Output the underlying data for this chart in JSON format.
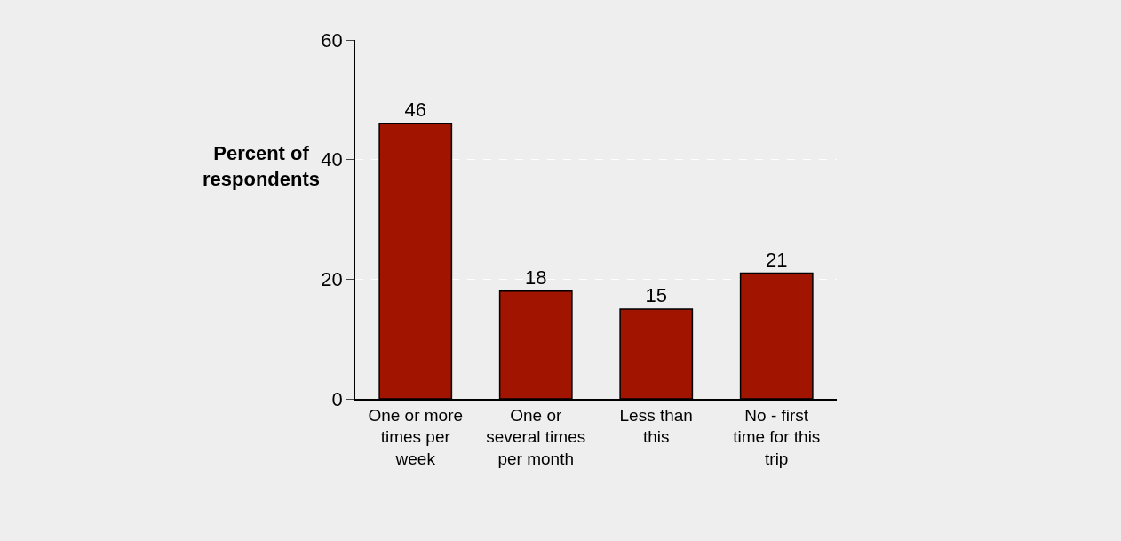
{
  "chart_data": {
    "type": "bar",
    "ylabel": "Percent of respondents",
    "categories": [
      "One or more times per week",
      "One or several times per month",
      "Less than this",
      "No - first time for this trip"
    ],
    "values": [
      46,
      18,
      15,
      21
    ],
    "color": "#a01400",
    "ylim": [
      0,
      60
    ],
    "yticks": [
      0,
      20,
      40,
      60
    ],
    "grid": "y",
    "data_labels": true
  }
}
